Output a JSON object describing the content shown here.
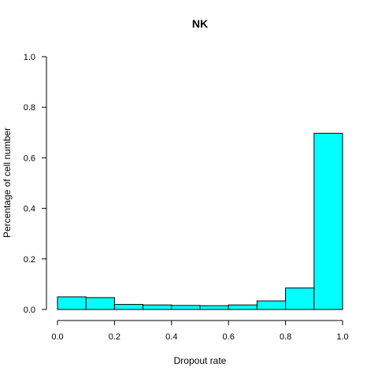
{
  "chart_data": {
    "type": "bar",
    "title": "NK",
    "xlabel": "Dropout rate",
    "ylabel": "Percentage of cell number",
    "xlim": [
      0,
      1
    ],
    "ylim": [
      0,
      1
    ],
    "x_ticks": [
      "0.0",
      "0.2",
      "0.4",
      "0.6",
      "0.8",
      "1.0"
    ],
    "y_ticks": [
      "0.0",
      "0.2",
      "0.4",
      "0.6",
      "0.8",
      "1.0"
    ],
    "bins": [
      {
        "from": 0.0,
        "to": 0.1,
        "value": 0.05
      },
      {
        "from": 0.1,
        "to": 0.2,
        "value": 0.047
      },
      {
        "from": 0.2,
        "to": 0.3,
        "value": 0.02
      },
      {
        "from": 0.3,
        "to": 0.4,
        "value": 0.018
      },
      {
        "from": 0.4,
        "to": 0.5,
        "value": 0.016
      },
      {
        "from": 0.5,
        "to": 0.6,
        "value": 0.015
      },
      {
        "from": 0.6,
        "to": 0.7,
        "value": 0.018
      },
      {
        "from": 0.7,
        "to": 0.8,
        "value": 0.034
      },
      {
        "from": 0.8,
        "to": 0.9,
        "value": 0.085
      },
      {
        "from": 0.9,
        "to": 1.0,
        "value": 0.697
      }
    ],
    "bar_color": "#00FFFF",
    "bar_border_color": "#000000",
    "grid": false,
    "legend": "none"
  }
}
